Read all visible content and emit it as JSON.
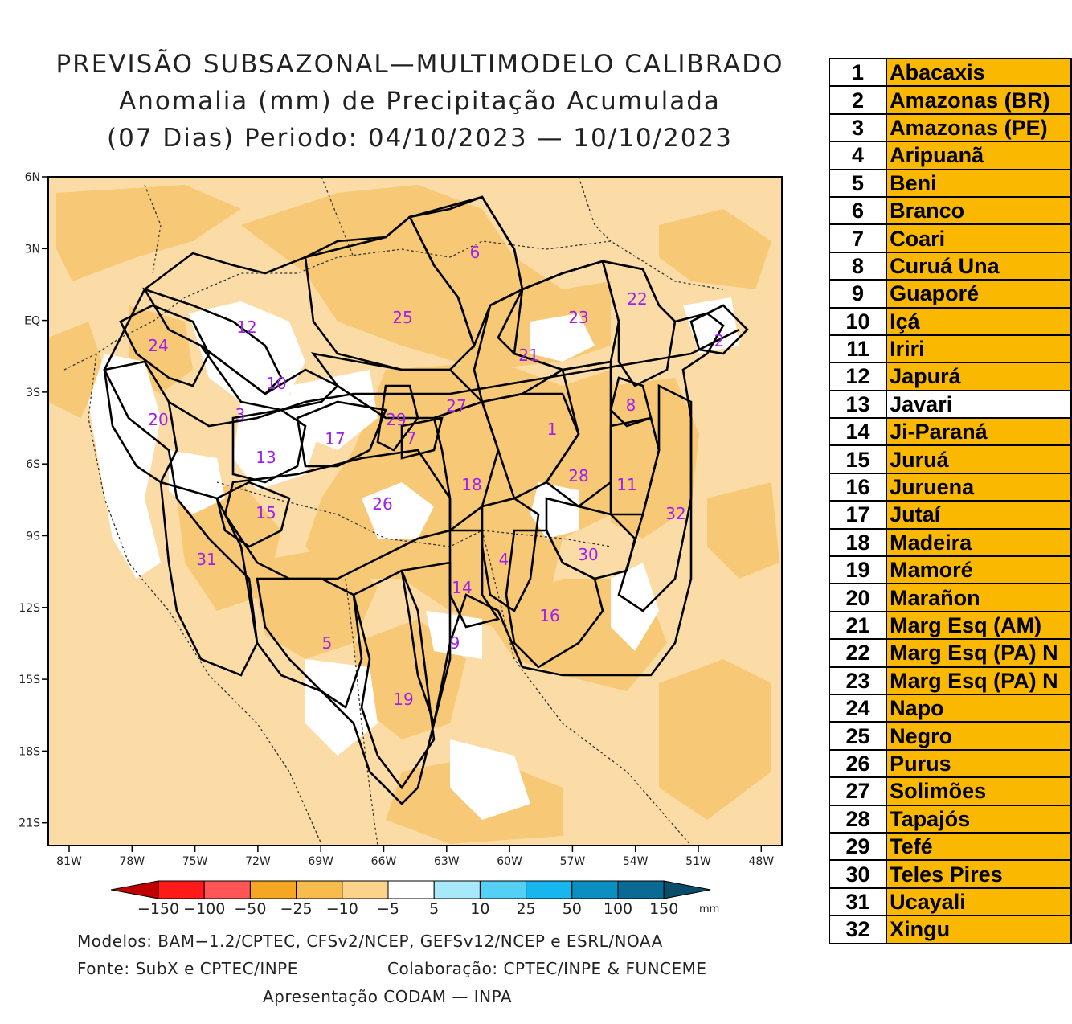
{
  "title": {
    "line1": "PREVISÃO SUBSAZONAL—MULTIMODELO CALIBRADO",
    "line2": "Anomalia (mm) de Precipitação Acumulada",
    "line3": "(07 Dias) Periodo: 04/10/2023 — 10/10/2023"
  },
  "axes": {
    "lat_labels": [
      "6N",
      "3N",
      "EQ",
      "3S",
      "6S",
      "9S",
      "12S",
      "15S",
      "18S",
      "21S"
    ],
    "lon_labels": [
      "81W",
      "78W",
      "75W",
      "72W",
      "69W",
      "66W",
      "63W",
      "60W",
      "57W",
      "54W",
      "51W",
      "48W"
    ]
  },
  "colorbar": {
    "ticks": [
      "−150",
      "−100",
      "−50",
      "−25",
      "−10",
      "−5",
      "5",
      "10",
      "25",
      "50",
      "100",
      "150"
    ],
    "unit": "mm",
    "colors": [
      "#c00000",
      "#ff1a1a",
      "#ff5555",
      "#f5a623",
      "#f7bb4e",
      "#fbd38a",
      "#ffffff",
      "#a8e8fb",
      "#55d0f5",
      "#18b6ee",
      "#0b8fc0",
      "#0a6a93",
      "#0a4d6b"
    ]
  },
  "map": {
    "colors": {
      "light": "#fbdcA6",
      "medium": "#f7c875",
      "white": "#ffffff"
    },
    "basin_numbers": [
      "1",
      "2",
      "3",
      "4",
      "5",
      "6",
      "7",
      "8",
      "9",
      "10",
      "11",
      "12",
      "13",
      "14",
      "15",
      "16",
      "17",
      "18",
      "19",
      "20",
      "21",
      "22",
      "23",
      "24",
      "25",
      "26",
      "27",
      "28",
      "29",
      "30",
      "31",
      "32"
    ],
    "label_color": "#a020f0"
  },
  "footer": {
    "models": "Modelos: BAM−1.2/CPTEC, CFSv2/NCEP, GEFSv12/NCEP e ESRL/NOAA",
    "source": "Fonte: SubX e CPTEC/INPE",
    "collab": "Colaboração: CPTEC/INPE & FUNCEME",
    "presentation": "Apresentação CODAM — INPA"
  },
  "basins": [
    {
      "num": "1",
      "name": "Abacaxis",
      "color": "#fbb800"
    },
    {
      "num": "2",
      "name": "Amazonas (BR)",
      "color": "#fbb800"
    },
    {
      "num": "3",
      "name": "Amazonas (PE)",
      "color": "#fbb800"
    },
    {
      "num": "4",
      "name": "Aripuanã",
      "color": "#fbb800"
    },
    {
      "num": "5",
      "name": "Beni",
      "color": "#fbb800"
    },
    {
      "num": "6",
      "name": "Branco",
      "color": "#fbb800"
    },
    {
      "num": "7",
      "name": "Coari",
      "color": "#fbb800"
    },
    {
      "num": "8",
      "name": "Curuá Una",
      "color": "#fbb800"
    },
    {
      "num": "9",
      "name": "Guaporé",
      "color": "#fbb800"
    },
    {
      "num": "10",
      "name": "Içá",
      "color": "#fbb800"
    },
    {
      "num": "11",
      "name": "Iriri",
      "color": "#fbb800"
    },
    {
      "num": "12",
      "name": "Japurá",
      "color": "#fbb800"
    },
    {
      "num": "13",
      "name": "Javari",
      "color": "#ffffff"
    },
    {
      "num": "14",
      "name": "Ji-Paraná",
      "color": "#fbb800"
    },
    {
      "num": "15",
      "name": "Juruá",
      "color": "#fbb800"
    },
    {
      "num": "16",
      "name": "Juruena",
      "color": "#fbb800"
    },
    {
      "num": "17",
      "name": "Jutaí",
      "color": "#fbb800"
    },
    {
      "num": "18",
      "name": "Madeira",
      "color": "#fbb800"
    },
    {
      "num": "19",
      "name": "Mamoré",
      "color": "#fbb800"
    },
    {
      "num": "20",
      "name": "Marañon",
      "color": "#fbb800"
    },
    {
      "num": "21",
      "name": "Marg Esq (AM)",
      "color": "#fbb800"
    },
    {
      "num": "22",
      "name": "Marg Esq (PA) N",
      "color": "#fbb800"
    },
    {
      "num": "23",
      "name": "Marg Esq (PA) N",
      "color": "#fbb800"
    },
    {
      "num": "24",
      "name": "Napo",
      "color": "#fbb800"
    },
    {
      "num": "25",
      "name": "Negro",
      "color": "#fbb800"
    },
    {
      "num": "26",
      "name": "Purus",
      "color": "#fbb800"
    },
    {
      "num": "27",
      "name": "Solimões",
      "color": "#fbb800"
    },
    {
      "num": "28",
      "name": "Tapajós",
      "color": "#fbb800"
    },
    {
      "num": "29",
      "name": "Tefé",
      "color": "#fbb800"
    },
    {
      "num": "30",
      "name": "Teles Pires",
      "color": "#fbb800"
    },
    {
      "num": "31",
      "name": "Ucayali",
      "color": "#fbb800"
    },
    {
      "num": "32",
      "name": "Xingu",
      "color": "#fbb800"
    }
  ]
}
